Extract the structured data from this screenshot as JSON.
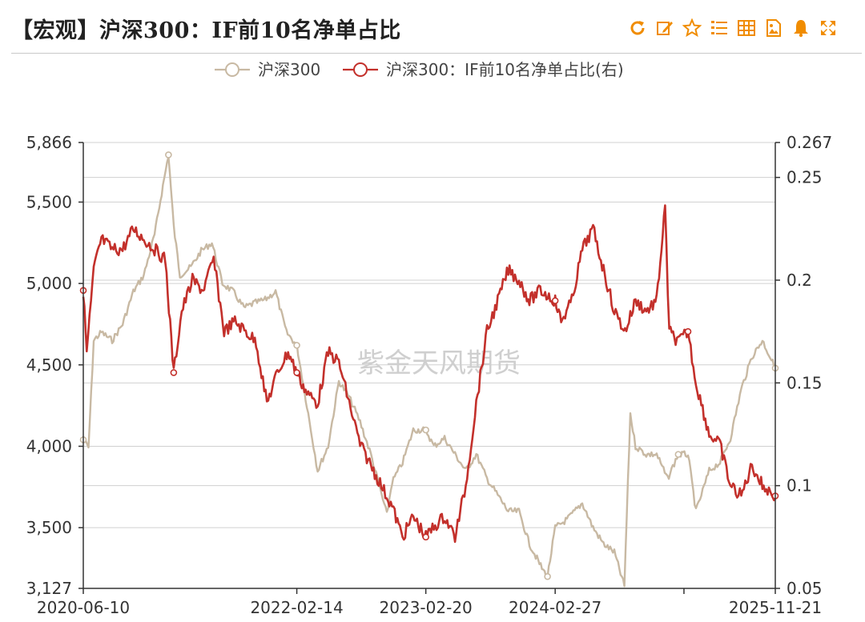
{
  "header": {
    "title": "【宏观】沪深300：IF前10名净单占比",
    "tools": [
      "refresh-icon",
      "edit-icon",
      "star-icon",
      "list-icon",
      "table-icon",
      "image-icon",
      "bell-icon",
      "fullscreen-icon"
    ]
  },
  "watermark": "紫金天风期货",
  "colors": {
    "accent": "#f08c00",
    "index_line": "#c8b9a3",
    "ratio_line": "#c3302b",
    "grid": "#d0d0d0"
  },
  "chart_data": {
    "type": "line",
    "legend": {
      "position": "top-center",
      "entries": [
        "沪深300",
        "沪深300：IF前10名净单占比(右)"
      ]
    },
    "x_tick_labels": [
      "2020-06-10",
      "2022-02-14",
      "2023-02-20",
      "2024-02-27",
      "2025-11-21"
    ],
    "x_range": [
      "2020-06-10",
      "2025-11-21"
    ],
    "y_left": {
      "range": [
        3127,
        5866
      ],
      "ticks": [
        "3,127",
        "3,500",
        "4,000",
        "4,500",
        "5,000",
        "5,500",
        "5,866"
      ],
      "tick_values": [
        3127,
        3500,
        4000,
        4500,
        5000,
        5500,
        5866
      ]
    },
    "y_right": {
      "range": [
        0.05,
        0.267
      ],
      "ticks": [
        "0.05",
        "0.1",
        "0.15",
        "0.2",
        "0.25",
        "0.267"
      ],
      "tick_values": [
        0.05,
        0.1,
        0.15,
        0.2,
        0.25,
        0.267
      ]
    },
    "grid": true,
    "series": [
      {
        "name": "沪深300",
        "axis": "left",
        "points": [
          [
            "2020-06-10",
            4040
          ],
          [
            "2020-06-25",
            3990
          ],
          [
            "2020-07-10",
            4650
          ],
          [
            "2020-08-01",
            4700
          ],
          [
            "2020-09-01",
            4650
          ],
          [
            "2020-10-01",
            4750
          ],
          [
            "2020-11-01",
            4950
          ],
          [
            "2020-12-01",
            5050
          ],
          [
            "2021-01-01",
            5300
          ],
          [
            "2021-01-25",
            5600
          ],
          [
            "2021-02-10",
            5790
          ],
          [
            "2021-02-25",
            5350
          ],
          [
            "2021-03-15",
            5050
          ],
          [
            "2021-04-15",
            5100
          ],
          [
            "2021-05-15",
            5200
          ],
          [
            "2021-06-15",
            5250
          ],
          [
            "2021-07-15",
            5000
          ],
          [
            "2021-08-15",
            4950
          ],
          [
            "2021-09-15",
            4850
          ],
          [
            "2021-10-15",
            4880
          ],
          [
            "2021-11-15",
            4900
          ],
          [
            "2021-12-15",
            4950
          ],
          [
            "2022-01-15",
            4700
          ],
          [
            "2022-02-14",
            4620
          ],
          [
            "2022-03-15",
            4250
          ],
          [
            "2022-04-15",
            3850
          ],
          [
            "2022-05-15",
            4000
          ],
          [
            "2022-06-15",
            4400
          ],
          [
            "2022-07-15",
            4300
          ],
          [
            "2022-08-15",
            4150
          ],
          [
            "2022-09-15",
            3950
          ],
          [
            "2022-10-31",
            3580
          ],
          [
            "2022-11-15",
            3780
          ],
          [
            "2022-12-15",
            3900
          ],
          [
            "2023-01-15",
            4100
          ],
          [
            "2023-02-20",
            4100
          ],
          [
            "2023-03-15",
            4000
          ],
          [
            "2023-04-15",
            4050
          ],
          [
            "2023-05-15",
            3950
          ],
          [
            "2023-06-15",
            3850
          ],
          [
            "2023-07-15",
            3950
          ],
          [
            "2023-08-15",
            3800
          ],
          [
            "2023-09-15",
            3700
          ],
          [
            "2023-10-15",
            3600
          ],
          [
            "2023-11-15",
            3600
          ],
          [
            "2023-12-15",
            3400
          ],
          [
            "2024-01-20",
            3250
          ],
          [
            "2024-02-05",
            3200
          ],
          [
            "2024-02-27",
            3500
          ],
          [
            "2024-04-01",
            3550
          ],
          [
            "2024-05-15",
            3650
          ],
          [
            "2024-06-15",
            3500
          ],
          [
            "2024-07-15",
            3400
          ],
          [
            "2024-08-15",
            3350
          ],
          [
            "2024-09-13",
            3140
          ],
          [
            "2024-09-30",
            4200
          ],
          [
            "2024-10-15",
            4000
          ],
          [
            "2024-11-15",
            3950
          ],
          [
            "2024-12-15",
            3950
          ],
          [
            "2025-01-15",
            3800
          ],
          [
            "2025-02-15",
            3950
          ],
          [
            "2025-03-15",
            3950
          ],
          [
            "2025-04-07",
            3600
          ],
          [
            "2025-05-15",
            3850
          ],
          [
            "2025-06-15",
            3900
          ],
          [
            "2025-07-15",
            4050
          ],
          [
            "2025-08-15",
            4350
          ],
          [
            "2025-09-15",
            4550
          ],
          [
            "2025-10-15",
            4650
          ],
          [
            "2025-11-21",
            4480
          ]
        ]
      },
      {
        "name": "沪深300：IF前10名净单占比(右)",
        "axis": "right",
        "points": [
          [
            "2020-06-10",
            0.195
          ],
          [
            "2020-06-20",
            0.165
          ],
          [
            "2020-07-10",
            0.205
          ],
          [
            "2020-08-01",
            0.22
          ],
          [
            "2020-09-01",
            0.215
          ],
          [
            "2020-10-01",
            0.215
          ],
          [
            "2020-11-01",
            0.225
          ],
          [
            "2020-12-01",
            0.22
          ],
          [
            "2021-01-01",
            0.215
          ],
          [
            "2021-02-01",
            0.21
          ],
          [
            "2021-02-25",
            0.155
          ],
          [
            "2021-03-20",
            0.185
          ],
          [
            "2021-04-20",
            0.2
          ],
          [
            "2021-05-20",
            0.195
          ],
          [
            "2021-06-20",
            0.21
          ],
          [
            "2021-07-20",
            0.175
          ],
          [
            "2021-08-20",
            0.18
          ],
          [
            "2021-09-20",
            0.175
          ],
          [
            "2021-10-20",
            0.17
          ],
          [
            "2021-11-20",
            0.14
          ],
          [
            "2021-12-20",
            0.155
          ],
          [
            "2022-01-20",
            0.165
          ],
          [
            "2022-02-14",
            0.155
          ],
          [
            "2022-03-15",
            0.145
          ],
          [
            "2022-04-15",
            0.14
          ],
          [
            "2022-05-15",
            0.165
          ],
          [
            "2022-06-15",
            0.16
          ],
          [
            "2022-07-15",
            0.14
          ],
          [
            "2022-08-15",
            0.12
          ],
          [
            "2022-09-15",
            0.11
          ],
          [
            "2022-10-15",
            0.1
          ],
          [
            "2022-11-15",
            0.09
          ],
          [
            "2022-12-15",
            0.075
          ],
          [
            "2023-01-15",
            0.085
          ],
          [
            "2023-02-20",
            0.075
          ],
          [
            "2023-03-15",
            0.08
          ],
          [
            "2023-04-15",
            0.085
          ],
          [
            "2023-05-15",
            0.075
          ],
          [
            "2023-06-15",
            0.1
          ],
          [
            "2023-07-15",
            0.14
          ],
          [
            "2023-08-15",
            0.175
          ],
          [
            "2023-09-15",
            0.19
          ],
          [
            "2023-10-15",
            0.205
          ],
          [
            "2023-11-15",
            0.2
          ],
          [
            "2023-12-15",
            0.19
          ],
          [
            "2024-01-15",
            0.195
          ],
          [
            "2024-02-27",
            0.19
          ],
          [
            "2024-03-15",
            0.18
          ],
          [
            "2024-04-15",
            0.19
          ],
          [
            "2024-05-15",
            0.215
          ],
          [
            "2024-06-15",
            0.225
          ],
          [
            "2024-07-15",
            0.205
          ],
          [
            "2024-08-15",
            0.185
          ],
          [
            "2024-09-15",
            0.175
          ],
          [
            "2024-10-15",
            0.19
          ],
          [
            "2024-11-15",
            0.185
          ],
          [
            "2024-12-15",
            0.19
          ],
          [
            "2025-01-08",
            0.235
          ],
          [
            "2025-01-20",
            0.175
          ],
          [
            "2025-02-15",
            0.17
          ],
          [
            "2025-03-15",
            0.175
          ],
          [
            "2025-04-07",
            0.15
          ],
          [
            "2025-05-15",
            0.125
          ],
          [
            "2025-06-15",
            0.12
          ],
          [
            "2025-07-15",
            0.1
          ],
          [
            "2025-08-15",
            0.095
          ],
          [
            "2025-09-15",
            0.11
          ],
          [
            "2025-10-15",
            0.1
          ],
          [
            "2025-11-21",
            0.095
          ]
        ]
      }
    ]
  }
}
